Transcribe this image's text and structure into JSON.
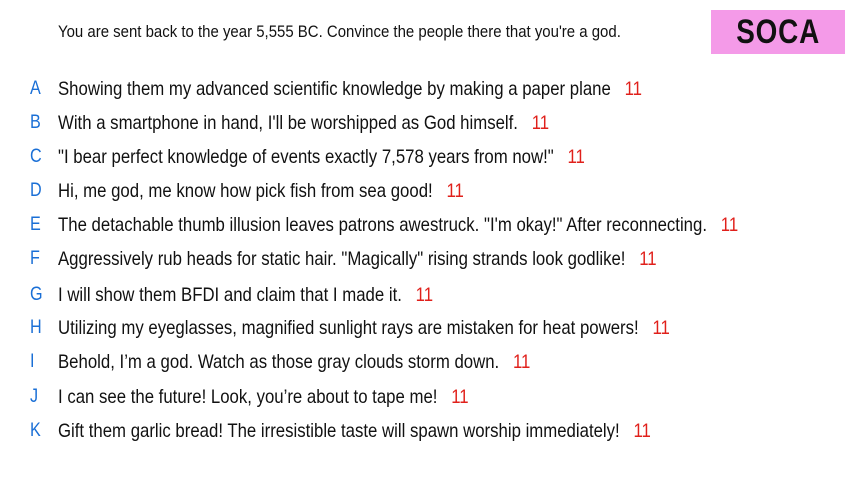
{
  "prompt": "You are sent back to the year 5,555 BC. Convince the people there that you're a god.",
  "tag": "SOCA",
  "colors": {
    "tag_background": "#f49ae8",
    "letter": "#1a6fd6",
    "score": "#e0201b"
  },
  "entries": [
    {
      "letter": "A",
      "text": "Showing them my advanced scientific knowledge by making a paper plane",
      "score": "11"
    },
    {
      "letter": "B",
      "text": "With a smartphone in hand, I'll be worshipped as God himself.",
      "score": "11"
    },
    {
      "letter": "C",
      "text": "\"I bear perfect knowledge of events exactly 7,578 years from now!\"",
      "score": "11"
    },
    {
      "letter": "D",
      "text": "Hi, me god, me know how pick fish from sea good!",
      "score": "11"
    },
    {
      "letter": "E",
      "text": "The detachable thumb illusion leaves patrons awestruck. \"I'm okay!\" After reconnecting.",
      "score": "11"
    },
    {
      "letter": "F",
      "text": "Aggressively rub heads for static hair. \"Magically\" rising strands look godlike!",
      "score": "11"
    },
    {
      "letter": "G",
      "text": "I will show them BFDI and claim that I made it.",
      "score": "11"
    },
    {
      "letter": "H",
      "text": "Utilizing my eyeglasses, magnified sunlight rays are mistaken for heat powers!",
      "score": "11"
    },
    {
      "letter": "I",
      "text": "Behold, I’m a god. Watch as those gray clouds storm down.",
      "score": "11"
    },
    {
      "letter": "J",
      "text": "I can see the future! Look, you’re about to tape me!",
      "score": "11"
    },
    {
      "letter": "K",
      "text": "Gift them garlic bread! The irresistible taste will spawn worship immediately!",
      "score": "11"
    }
  ]
}
